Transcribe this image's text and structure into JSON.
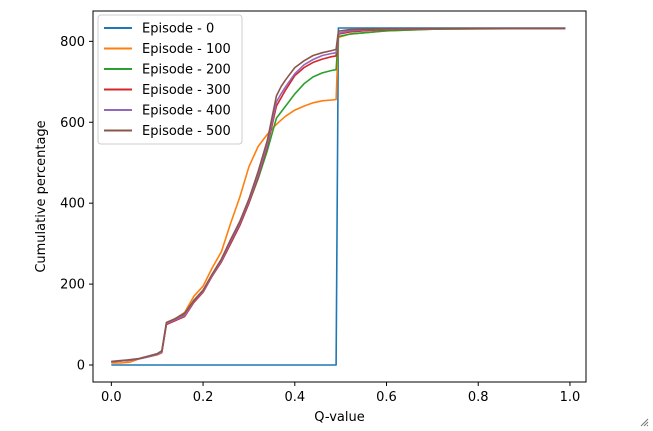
{
  "chart_data": {
    "type": "line",
    "title": "",
    "xlabel": "Q-value",
    "ylabel": "Cumulative percentage",
    "xlim": [
      -0.04,
      1.035
    ],
    "ylim": [
      -42,
      875
    ],
    "xticks": [
      0.0,
      0.2,
      0.4,
      0.6,
      0.8,
      1.0
    ],
    "xtick_labels": [
      "0.0",
      "0.2",
      "0.4",
      "0.6",
      "0.8",
      "1.0"
    ],
    "yticks": [
      0,
      200,
      400,
      600,
      800
    ],
    "ytick_labels": [
      "0",
      "200",
      "400",
      "600",
      "800"
    ],
    "grid": false,
    "legend_position": "top-left",
    "series": [
      {
        "name": "Episode - 0",
        "color": "#1f77b4",
        "x": [
          0.0,
          0.49,
          0.495,
          0.99
        ],
        "y": [
          0,
          0,
          833,
          833
        ]
      },
      {
        "name": "Episode - 100",
        "color": "#ff7f0e",
        "x": [
          0.0,
          0.02,
          0.04,
          0.06,
          0.08,
          0.1,
          0.11,
          0.12,
          0.14,
          0.16,
          0.18,
          0.2,
          0.22,
          0.24,
          0.26,
          0.28,
          0.3,
          0.32,
          0.34,
          0.36,
          0.37,
          0.38,
          0.4,
          0.42,
          0.44,
          0.46,
          0.48,
          0.49,
          0.495,
          0.52,
          0.56,
          0.6,
          0.7,
          0.8,
          0.99
        ],
        "y": [
          5,
          5,
          7,
          15,
          20,
          25,
          30,
          100,
          115,
          130,
          170,
          195,
          240,
          280,
          350,
          415,
          490,
          540,
          570,
          595,
          605,
          615,
          630,
          640,
          648,
          653,
          655,
          656,
          810,
          818,
          822,
          826,
          830,
          831,
          832
        ]
      },
      {
        "name": "Episode - 200",
        "color": "#2ca02c",
        "x": [
          0.0,
          0.02,
          0.04,
          0.06,
          0.08,
          0.1,
          0.11,
          0.12,
          0.14,
          0.16,
          0.18,
          0.2,
          0.22,
          0.24,
          0.26,
          0.28,
          0.3,
          0.32,
          0.34,
          0.36,
          0.37,
          0.38,
          0.4,
          0.42,
          0.44,
          0.46,
          0.48,
          0.49,
          0.495,
          0.52,
          0.56,
          0.6,
          0.7,
          0.8,
          0.99
        ],
        "y": [
          8,
          10,
          12,
          15,
          20,
          26,
          32,
          103,
          110,
          125,
          160,
          185,
          220,
          255,
          300,
          345,
          400,
          460,
          530,
          610,
          625,
          640,
          670,
          695,
          712,
          722,
          728,
          730,
          812,
          818,
          822,
          826,
          830,
          831,
          832
        ]
      },
      {
        "name": "Episode - 300",
        "color": "#d62728",
        "x": [
          0.0,
          0.02,
          0.04,
          0.06,
          0.08,
          0.1,
          0.11,
          0.12,
          0.14,
          0.16,
          0.18,
          0.2,
          0.22,
          0.24,
          0.26,
          0.28,
          0.3,
          0.32,
          0.34,
          0.36,
          0.37,
          0.38,
          0.4,
          0.42,
          0.44,
          0.46,
          0.48,
          0.49,
          0.495,
          0.52,
          0.56,
          0.6,
          0.7,
          0.8,
          0.99
        ],
        "y": [
          8,
          10,
          12,
          15,
          20,
          26,
          32,
          100,
          110,
          120,
          155,
          180,
          220,
          255,
          300,
          345,
          400,
          465,
          540,
          640,
          660,
          680,
          715,
          735,
          748,
          756,
          762,
          764,
          818,
          823,
          827,
          829,
          831,
          832,
          832
        ]
      },
      {
        "name": "Episode - 400",
        "color": "#9467bd",
        "x": [
          0.0,
          0.02,
          0.04,
          0.06,
          0.08,
          0.1,
          0.11,
          0.12,
          0.14,
          0.16,
          0.18,
          0.2,
          0.22,
          0.24,
          0.26,
          0.28,
          0.3,
          0.32,
          0.34,
          0.36,
          0.37,
          0.38,
          0.4,
          0.42,
          0.44,
          0.46,
          0.48,
          0.49,
          0.495,
          0.52,
          0.56,
          0.6,
          0.7,
          0.8,
          0.99
        ],
        "y": [
          8,
          10,
          12,
          15,
          20,
          26,
          32,
          102,
          112,
          122,
          158,
          182,
          222,
          258,
          305,
          350,
          405,
          470,
          545,
          650,
          670,
          688,
          720,
          742,
          755,
          765,
          770,
          772,
          820,
          826,
          829,
          830,
          831,
          832,
          832
        ]
      },
      {
        "name": "Episode - 500",
        "color": "#8c564b",
        "x": [
          0.0,
          0.02,
          0.04,
          0.06,
          0.08,
          0.1,
          0.11,
          0.12,
          0.14,
          0.16,
          0.18,
          0.2,
          0.22,
          0.24,
          0.26,
          0.28,
          0.3,
          0.32,
          0.34,
          0.36,
          0.37,
          0.38,
          0.4,
          0.42,
          0.44,
          0.46,
          0.48,
          0.49,
          0.495,
          0.52,
          0.56,
          0.6,
          0.7,
          0.8,
          0.99
        ],
        "y": [
          9,
          11,
          13,
          16,
          22,
          28,
          35,
          105,
          115,
          128,
          160,
          185,
          225,
          262,
          310,
          355,
          410,
          478,
          555,
          665,
          688,
          705,
          735,
          752,
          765,
          772,
          777,
          780,
          825,
          829,
          830,
          831,
          832,
          832,
          832
        ]
      }
    ]
  }
}
